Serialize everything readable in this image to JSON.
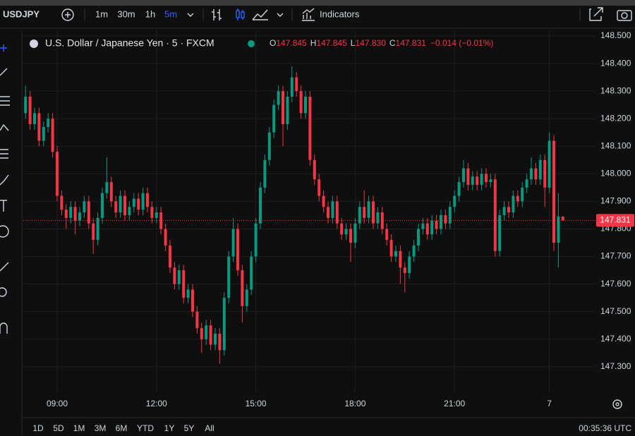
{
  "toolbar": {
    "symbol": "USDJPY",
    "intervals": [
      "1m",
      "30m",
      "1h",
      "5m"
    ],
    "indicators": "Indicators"
  },
  "chart_data": {
    "type": "candlestick",
    "title": "U.S. Dollar / Japanese Yen · 5 · FXCM",
    "open": [
      148.22,
      148.28,
      148.18,
      148.22,
      148.12,
      148.17,
      148.2,
      148.08,
      147.92,
      147.87,
      147.84,
      147.88,
      147.83,
      147.86,
      147.9,
      147.82,
      147.76,
      147.84,
      147.93,
      147.97,
      147.9,
      147.86,
      147.92,
      147.85,
      147.88,
      147.91,
      147.87,
      147.93,
      147.88,
      147.84,
      147.86,
      147.8,
      147.74,
      147.66,
      147.6,
      147.65,
      147.55,
      147.58,
      147.5,
      147.44,
      147.4,
      147.45,
      147.38,
      147.42,
      147.36,
      147.55,
      147.7,
      147.8,
      147.65,
      147.52,
      147.58,
      147.7,
      147.82,
      147.95,
      148.05,
      148.15,
      148.25,
      148.3,
      148.18,
      148.28,
      148.35,
      148.3,
      148.22,
      148.28,
      148.05,
      147.98,
      147.92,
      147.88,
      147.84,
      147.9,
      147.82,
      147.78,
      147.8,
      147.75,
      147.82,
      147.88,
      147.84,
      147.9,
      147.82,
      147.86,
      147.8,
      147.76,
      147.7,
      147.72,
      147.66,
      147.64,
      147.7,
      147.74,
      147.8,
      147.82,
      147.78,
      147.83,
      147.8,
      147.85,
      147.82,
      147.88,
      147.92,
      147.97,
      148.02,
      147.96,
      147.99,
      147.96,
      148.0,
      147.97,
      147.98,
      147.72,
      147.85,
      147.88,
      147.86,
      147.92,
      147.9,
      147.95,
      147.98,
      148.02,
      147.98,
      148.05,
      147.95,
      148.12,
      147.75,
      147.845
    ],
    "high": [
      148.32,
      148.3,
      148.24,
      148.24,
      148.19,
      148.22,
      148.22,
      148.1,
      147.94,
      147.89,
      147.9,
      147.9,
      147.88,
      147.92,
      147.92,
      147.84,
      147.86,
      147.95,
      148.06,
      147.99,
      147.92,
      147.94,
      147.94,
      147.9,
      147.93,
      147.93,
      147.95,
      147.95,
      147.9,
      147.88,
      147.88,
      147.82,
      147.76,
      147.68,
      147.67,
      147.67,
      147.6,
      147.6,
      147.52,
      147.46,
      147.47,
      147.47,
      147.44,
      147.44,
      147.57,
      147.72,
      147.84,
      147.82,
      147.67,
      147.6,
      147.72,
      147.84,
      147.97,
      148.07,
      148.17,
      148.27,
      148.32,
      148.32,
      148.3,
      148.39,
      148.37,
      148.32,
      148.3,
      148.3,
      148.07,
      148.0,
      147.94,
      147.9,
      147.92,
      147.92,
      147.84,
      147.82,
      147.82,
      147.84,
      147.9,
      147.94,
      147.92,
      147.92,
      147.88,
      147.88,
      147.82,
      147.78,
      147.74,
      147.74,
      147.68,
      147.72,
      147.76,
      147.82,
      147.84,
      147.84,
      147.85,
      147.85,
      147.87,
      147.87,
      147.9,
      147.94,
      147.99,
      148.05,
      148.04,
      148.01,
      148.01,
      148.02,
      148.02,
      148.0,
      148.0,
      147.87,
      147.9,
      147.9,
      147.94,
      147.94,
      147.97,
      148.0,
      148.06,
      148.04,
      148.07,
      148.07,
      148.15,
      148.14,
      147.93,
      147.845
    ],
    "low": [
      148.2,
      148.16,
      148.16,
      148.1,
      148.1,
      148.15,
      148.06,
      147.9,
      147.85,
      147.8,
      147.82,
      147.78,
      147.81,
      147.84,
      147.8,
      147.71,
      147.74,
      147.82,
      147.91,
      147.88,
      147.84,
      147.84,
      147.83,
      147.83,
      147.86,
      147.85,
      147.85,
      147.86,
      147.82,
      147.82,
      147.78,
      147.72,
      147.64,
      147.58,
      147.58,
      147.53,
      147.53,
      147.48,
      147.42,
      147.35,
      147.38,
      147.36,
      147.36,
      147.31,
      147.34,
      147.53,
      147.68,
      147.63,
      147.46,
      147.5,
      147.56,
      147.68,
      147.8,
      147.93,
      148.03,
      148.13,
      148.23,
      148.1,
      148.16,
      148.26,
      148.28,
      148.2,
      148.2,
      148.03,
      147.96,
      147.9,
      147.86,
      147.82,
      147.82,
      147.8,
      147.76,
      147.76,
      147.68,
      147.73,
      147.8,
      147.82,
      147.82,
      147.8,
      147.8,
      147.78,
      147.74,
      147.68,
      147.68,
      147.6,
      147.57,
      147.62,
      147.68,
      147.72,
      147.78,
      147.76,
      147.76,
      147.78,
      147.78,
      147.8,
      147.8,
      147.86,
      147.9,
      147.95,
      147.94,
      147.94,
      147.94,
      147.94,
      147.95,
      147.95,
      147.7,
      147.7,
      147.83,
      147.84,
      147.84,
      147.88,
      147.88,
      147.93,
      147.96,
      147.96,
      147.96,
      147.88,
      147.93,
      147.72,
      147.66,
      147.83
    ],
    "close": [
      148.28,
      148.18,
      148.22,
      148.12,
      148.17,
      148.2,
      148.08,
      147.92,
      147.87,
      147.84,
      147.88,
      147.83,
      147.86,
      147.9,
      147.82,
      147.76,
      147.84,
      147.93,
      147.97,
      147.9,
      147.86,
      147.92,
      147.85,
      147.88,
      147.91,
      147.87,
      147.93,
      147.88,
      147.84,
      147.86,
      147.8,
      147.74,
      147.66,
      147.6,
      147.65,
      147.55,
      147.58,
      147.5,
      147.44,
      147.4,
      147.45,
      147.38,
      147.42,
      147.36,
      147.55,
      147.7,
      147.8,
      147.65,
      147.52,
      147.58,
      147.7,
      147.82,
      147.95,
      148.05,
      148.15,
      148.25,
      148.3,
      148.18,
      148.28,
      148.35,
      148.3,
      148.22,
      148.28,
      148.05,
      147.98,
      147.92,
      147.88,
      147.84,
      147.9,
      147.82,
      147.78,
      147.8,
      147.75,
      147.82,
      147.88,
      147.84,
      147.9,
      147.82,
      147.86,
      147.8,
      147.76,
      147.7,
      147.72,
      147.66,
      147.64,
      147.7,
      147.74,
      147.8,
      147.82,
      147.78,
      147.83,
      147.8,
      147.85,
      147.82,
      147.88,
      147.92,
      147.97,
      148.02,
      147.96,
      147.99,
      147.96,
      148.0,
      147.97,
      147.98,
      147.72,
      147.85,
      147.88,
      147.86,
      147.92,
      147.9,
      147.95,
      147.98,
      148.02,
      147.98,
      148.05,
      147.95,
      148.12,
      147.75,
      147.845,
      147.831
    ],
    "colors": {
      "up": "#089981",
      "down": "#f23645"
    },
    "ylim": [
      147.21,
      148.518
    ],
    "yticks": [
      {
        "value": 148.5,
        "label": "148.500"
      },
      {
        "value": 148.4,
        "label": "148.400"
      },
      {
        "value": 148.3,
        "label": "148.300"
      },
      {
        "value": 148.2,
        "label": "148.200"
      },
      {
        "value": 148.1,
        "label": "148.100"
      },
      {
        "value": 148.0,
        "label": "148.000"
      },
      {
        "value": 147.9,
        "label": "147.900"
      },
      {
        "value": 147.8,
        "label": "147.800"
      },
      {
        "value": 147.7,
        "label": "147.700"
      },
      {
        "value": 147.6,
        "label": "147.600"
      },
      {
        "value": 147.5,
        "label": "147.500"
      },
      {
        "value": 147.4,
        "label": "147.400"
      },
      {
        "value": 147.3,
        "label": "147.300"
      }
    ],
    "xticks": [
      {
        "value": 7,
        "label": "09:00"
      },
      {
        "value": 29,
        "label": "12:00"
      },
      {
        "value": 51,
        "label": "15:00"
      },
      {
        "value": 73,
        "label": "18:00"
      },
      {
        "value": 95,
        "label": "21:00"
      },
      {
        "value": 116,
        "label": "7"
      }
    ],
    "grid": true,
    "legend": {
      "items": [
        {
          "key": "O",
          "value": "147.845"
        },
        {
          "key": "H",
          "value": "147.845"
        },
        {
          "key": "L",
          "value": "147.830"
        },
        {
          "key": "C",
          "value": "147.831"
        }
      ],
      "change": "−0.014 (−0.01%)"
    },
    "price_label": "147.831"
  },
  "bottom_bar": {
    "ranges": [
      "1D",
      "5D",
      "1M",
      "3M",
      "6M",
      "YTD",
      "1Y",
      "5Y",
      "All"
    ],
    "clock": "00:35:36 UTC"
  }
}
